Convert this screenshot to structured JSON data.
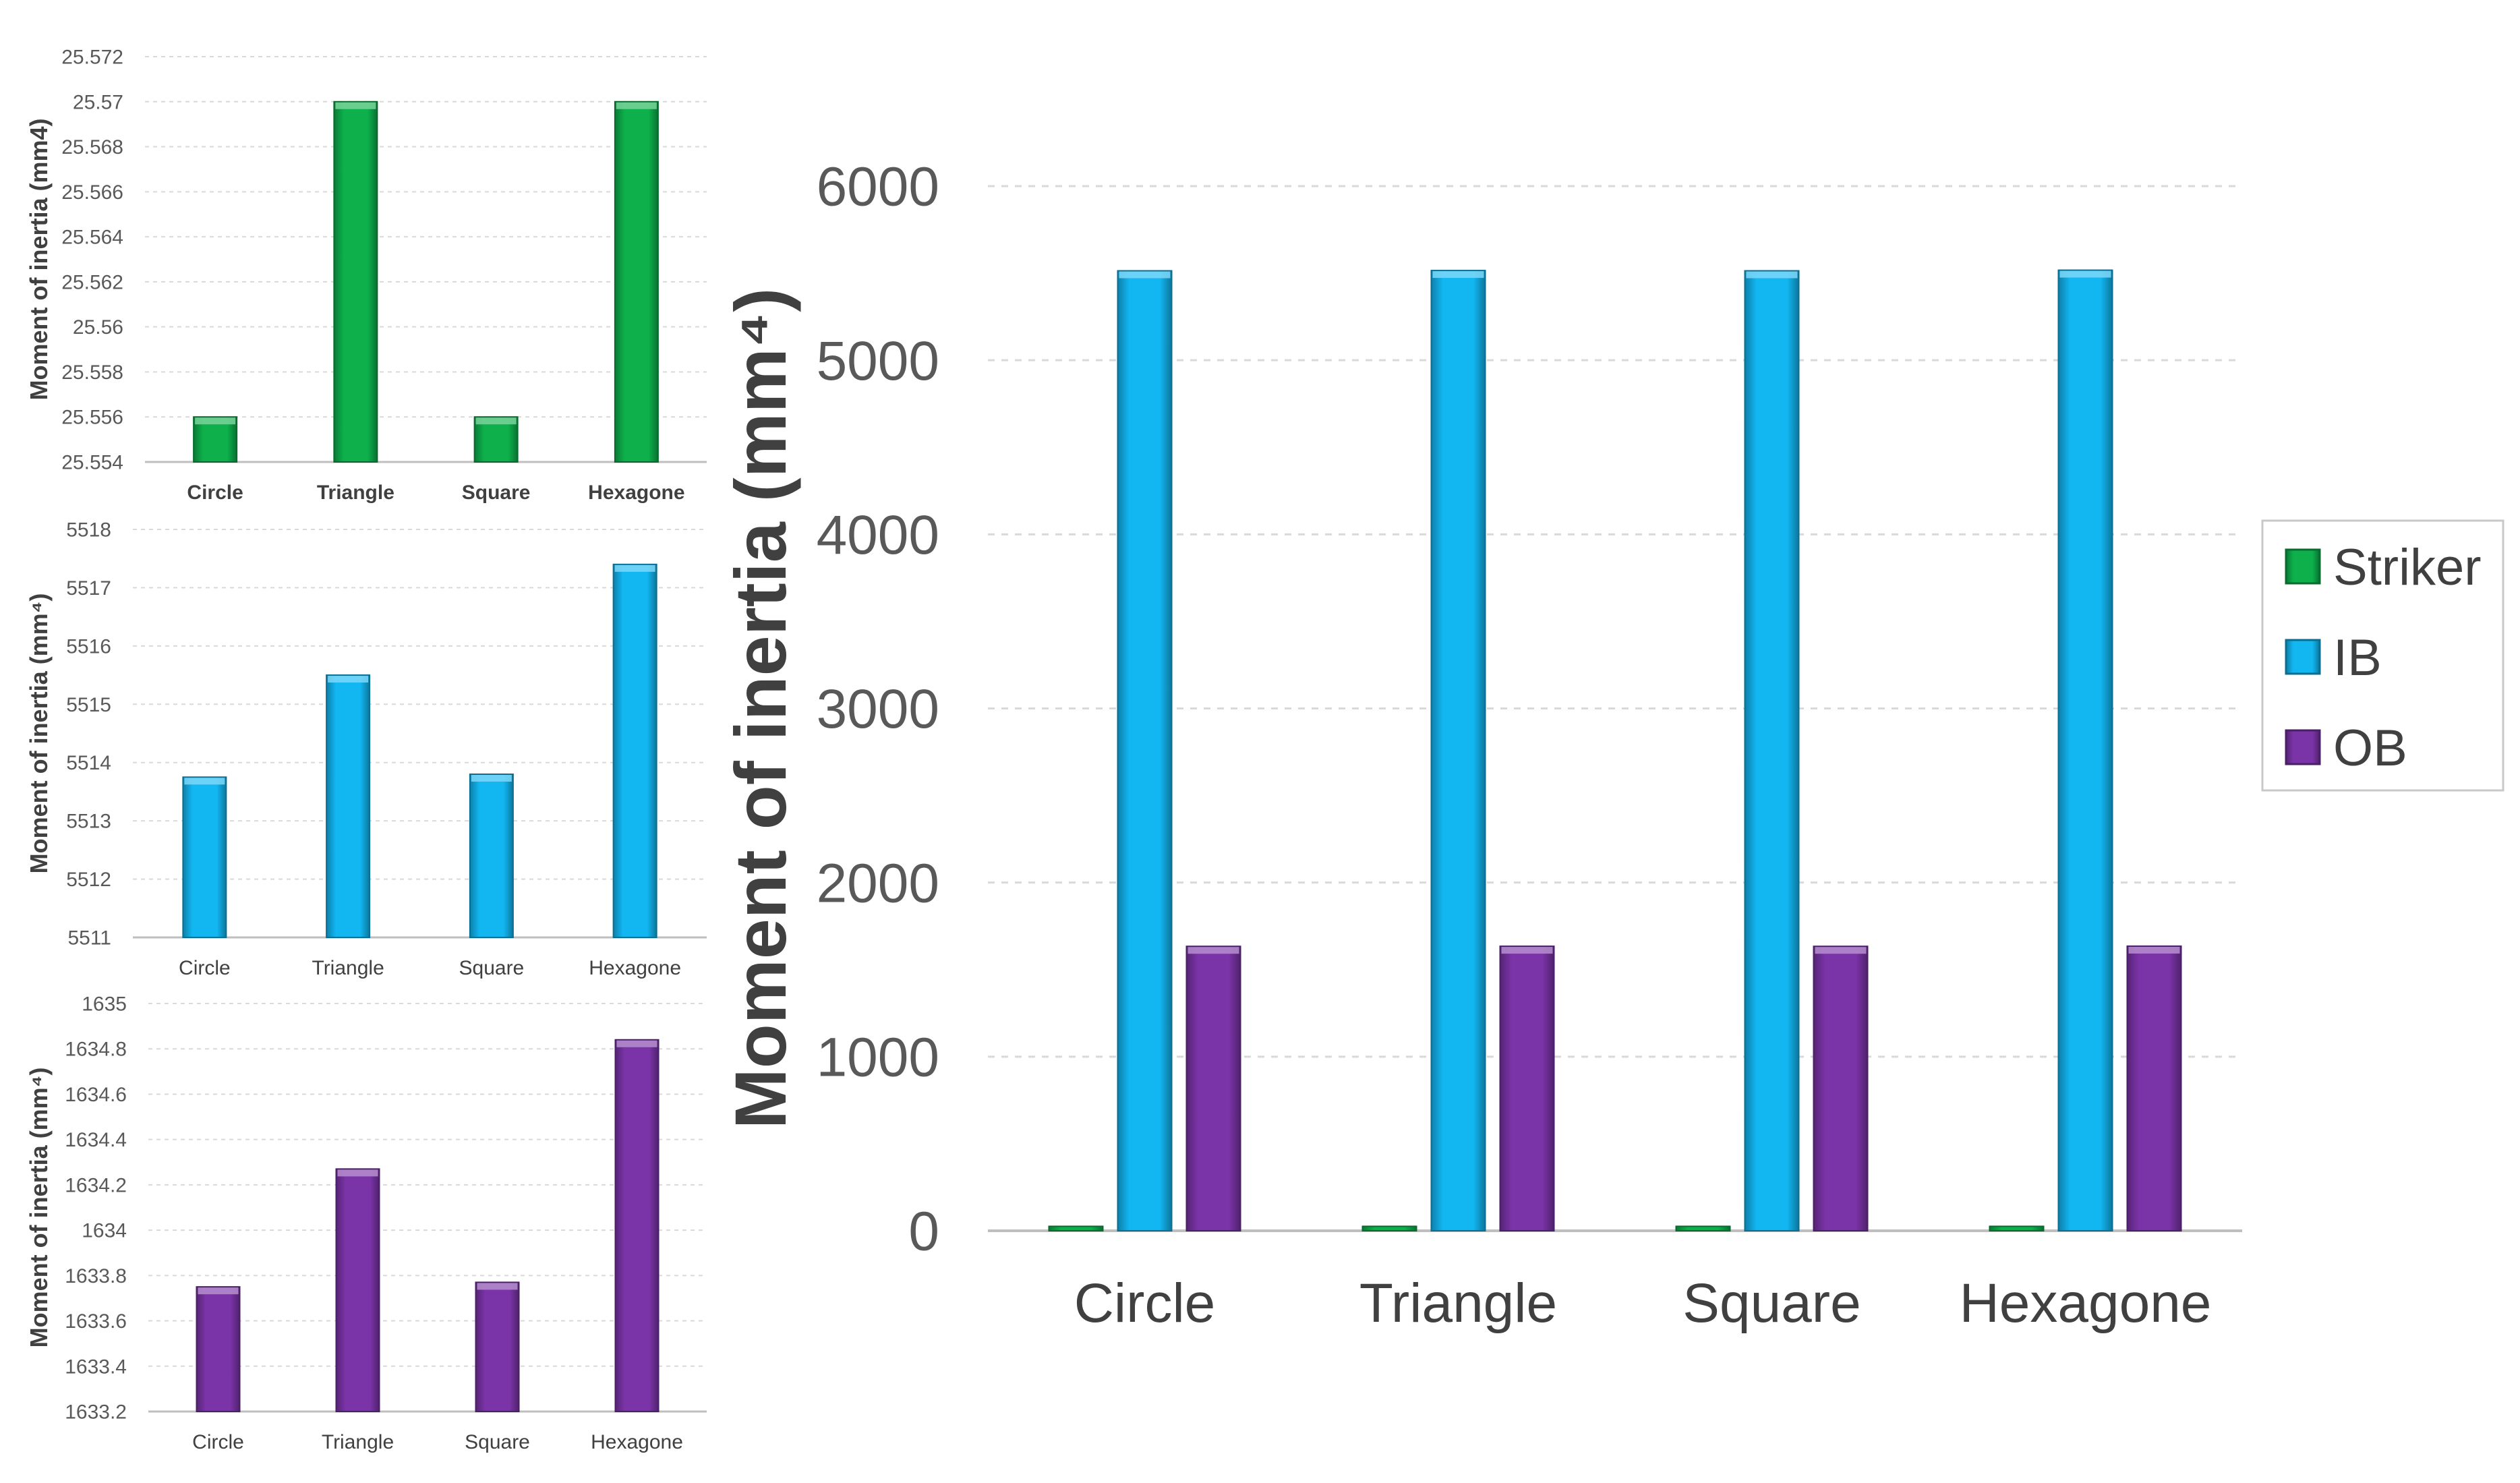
{
  "chart_data": [
    {
      "id": "striker",
      "type": "bar",
      "categories": [
        "Circle",
        "Triangle",
        "Square",
        "Hexagone"
      ],
      "values": [
        25.556,
        25.57,
        25.556,
        25.57
      ],
      "ylim": [
        25.554,
        25.572
      ],
      "yticks": [
        "25.554",
        "25.556",
        "25.558",
        "25.56",
        "25.562",
        "25.564",
        "25.566",
        "25.568",
        "25.57",
        "25.572"
      ],
      "ylabel": "Moment of inertia (mm4)",
      "color": "#0db04b",
      "grid": true,
      "legend": "none"
    },
    {
      "id": "ib",
      "type": "bar",
      "categories": [
        "Circle",
        "Triangle",
        "Square",
        "Hexagone"
      ],
      "values": [
        5513.75,
        5515.5,
        5513.8,
        5517.4
      ],
      "ylim": [
        5511,
        5518
      ],
      "yticks": [
        "5511",
        "5512",
        "5513",
        "5514",
        "5515",
        "5516",
        "5517",
        "5518"
      ],
      "ylabel": "Moment of inertia (mm⁴)",
      "color": "#12b7f2",
      "grid": true,
      "legend": "none"
    },
    {
      "id": "ob",
      "type": "bar",
      "categories": [
        "Circle",
        "Triangle",
        "Square",
        "Hexagone"
      ],
      "values": [
        1633.75,
        1634.27,
        1633.77,
        1634.84
      ],
      "ylim": [
        1633.2,
        1635
      ],
      "yticks": [
        "1633.2",
        "1633.4",
        "1633.6",
        "1633.8",
        "1634",
        "1634.2",
        "1634.4",
        "1634.6",
        "1634.8",
        "1635"
      ],
      "ylabel": "Moment of inertia (mm⁴)",
      "color": "#7b34a8",
      "grid": true,
      "legend": "none"
    },
    {
      "id": "main",
      "type": "bar",
      "categories": [
        "Circle",
        "Triangle",
        "Square",
        "Hexagone"
      ],
      "series": [
        {
          "name": "Striker",
          "values": [
            25.56,
            25.57,
            25.56,
            25.57
          ],
          "color": "#0db04b"
        },
        {
          "name": "IB",
          "values": [
            5513.75,
            5515.5,
            5513.8,
            5517.4
          ],
          "color": "#12b7f2"
        },
        {
          "name": "OB",
          "values": [
            1633.75,
            1634.27,
            1633.77,
            1634.84
          ],
          "color": "#7b34a8"
        }
      ],
      "ylim": [
        0,
        6000
      ],
      "yticks": [
        "0",
        "1000",
        "2000",
        "3000",
        "4000",
        "5000",
        "6000"
      ],
      "ylabel": "Moment of inertia (mm⁴)",
      "grid": true,
      "legend": "right"
    }
  ]
}
